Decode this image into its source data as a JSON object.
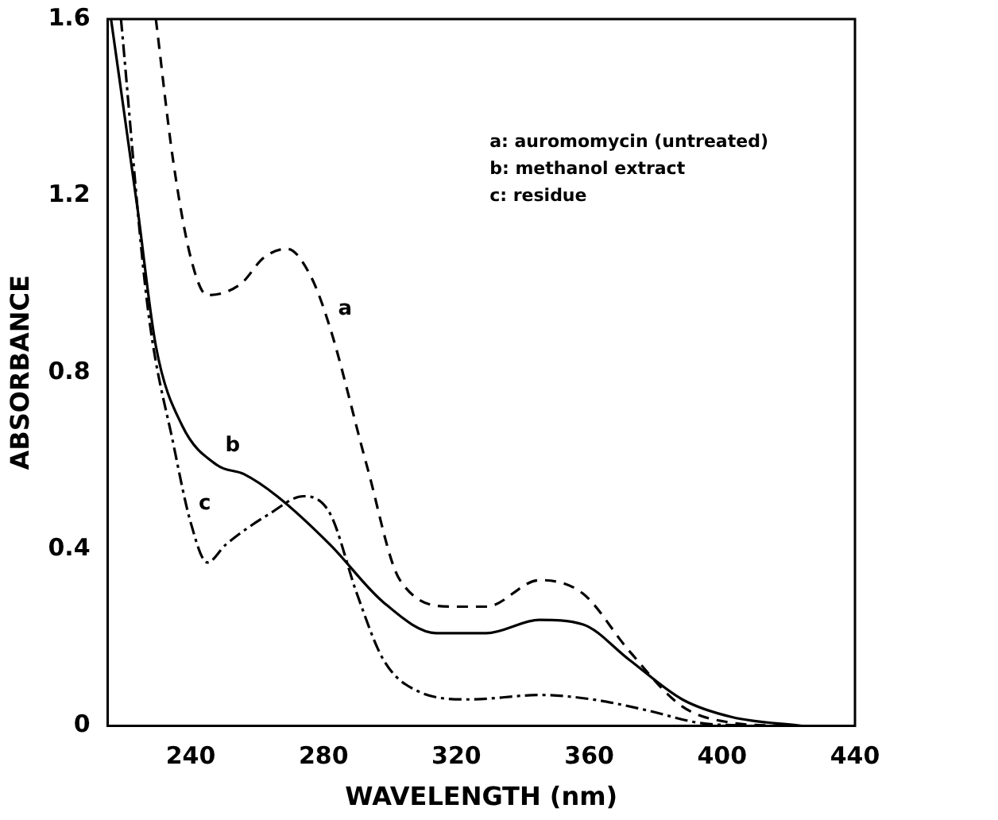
{
  "chart_data": {
    "type": "line",
    "xlabel": "WAVELENGTH (nm)",
    "ylabel": "ABSORBANCE",
    "xlim": [
      215,
      440
    ],
    "xticks": [
      240,
      280,
      320,
      360,
      400,
      440
    ],
    "ylim": [
      0,
      1.6
    ],
    "yticks": [
      0,
      0.4,
      0.8,
      1.2,
      1.6
    ],
    "grid": false,
    "legend": false,
    "marker": "none",
    "series": [
      {
        "color": "#000000",
        "line_style": "dashed",
        "x": [
          229.5,
          234.7,
          240,
          245,
          255,
          262,
          269,
          276,
          282,
          293,
          303,
          319,
          329,
          345,
          358,
          372,
          388,
          403,
          419
        ],
        "values": [
          1.6,
          1.28,
          1.06,
          0.975,
          1.0,
          1.06,
          1.08,
          1.02,
          0.9,
          0.59,
          0.33,
          0.27,
          0.27,
          0.33,
          0.3,
          0.17,
          0.044,
          0.007,
          0
        ]
      },
      {
        "color": "#000000",
        "line_style": "solid",
        "x": [
          216,
          224,
          229.5,
          237.4,
          248,
          256,
          266,
          282,
          298,
          314,
          329,
          345,
          358,
          372,
          388,
          403,
          424
        ],
        "values": [
          1.6,
          1.17,
          0.86,
          0.68,
          0.59,
          0.57,
          0.52,
          0.41,
          0.28,
          0.21,
          0.21,
          0.24,
          0.23,
          0.15,
          0.06,
          0.02,
          0
        ]
      },
      {
        "color": "#000000",
        "line_style": "dashdot",
        "x": [
          219,
          227,
          235,
          240,
          245,
          250.5,
          263.7,
          274,
          282,
          290,
          298,
          308,
          324,
          345,
          361,
          377,
          393,
          408
        ],
        "values": [
          1.6,
          0.95,
          0.63,
          0.46,
          0.37,
          0.41,
          0.48,
          0.52,
          0.48,
          0.3,
          0.15,
          0.08,
          0.06,
          0.07,
          0.06,
          0.036,
          0.007,
          0
        ]
      }
    ],
    "annotations": [
      {
        "text": "a",
        "x": 282,
        "y": 0.9
      },
      {
        "text": "b",
        "x": 248,
        "y": 0.59
      },
      {
        "text": "c",
        "x": 240,
        "y": 0.46
      },
      "a: auromomycin (untreated)",
      "b: methanol extract",
      "c: residue"
    ]
  }
}
